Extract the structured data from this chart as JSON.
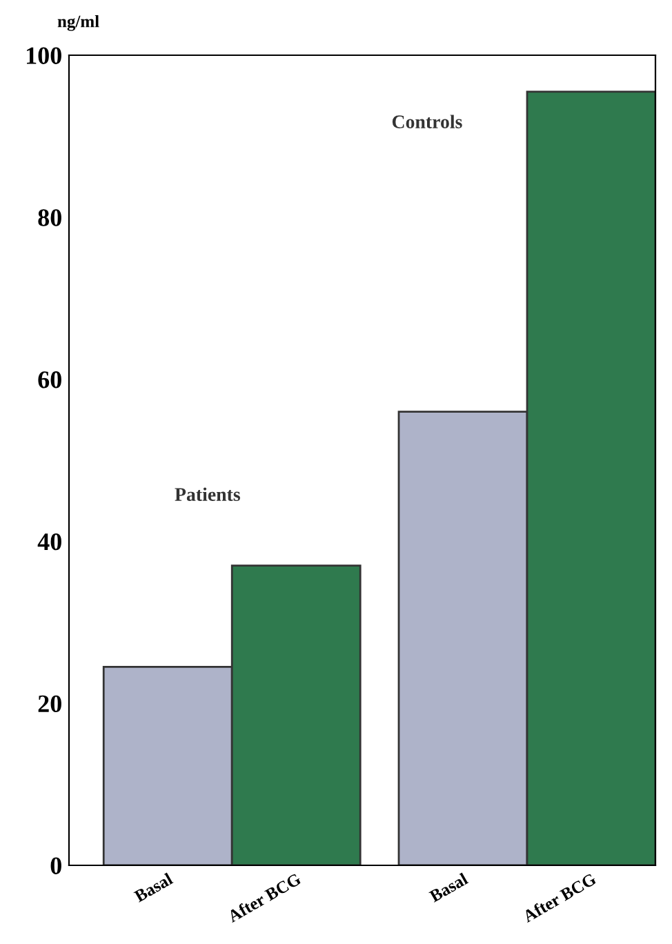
{
  "chart_data": {
    "type": "bar",
    "ylabel": "ng/ml",
    "categories": [
      "Basal",
      "After BCG",
      "Basal",
      "After BCG"
    ],
    "values": [
      24.5,
      37,
      56,
      95.5
    ],
    "colors": [
      "#aeb3c9",
      "#2f7a4e",
      "#aeb3c9",
      "#2f7a4e"
    ],
    "annotations": [
      "Patients",
      "Controls"
    ],
    "ylim": [
      0,
      100
    ],
    "yticks": [
      0,
      20,
      40,
      60,
      80,
      100
    ],
    "grid": false
  }
}
